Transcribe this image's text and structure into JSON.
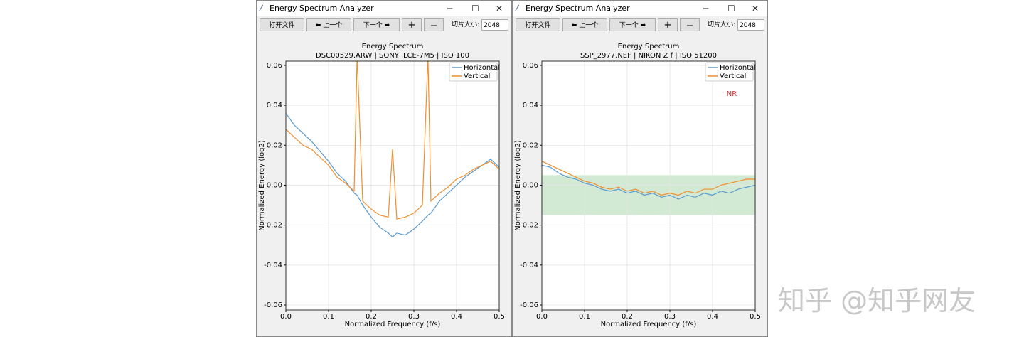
{
  "windows": [
    {
      "title": "Energy Spectrum Analyzer",
      "toolbar": {
        "open": "打开文件",
        "prev": "⬅ 上一个",
        "next": "下一个 ➡",
        "zoom_in": "+",
        "zoom_out": "—",
        "slice_label": "切片大小:",
        "slice_value": "2048"
      }
    },
    {
      "title": "Energy Spectrum Analyzer",
      "toolbar": {
        "open": "打开文件",
        "prev": "⬅ 上一个",
        "next": "下一个 ➡",
        "zoom_in": "+",
        "zoom_out": "—",
        "slice_label": "切片大小:",
        "slice_value": "2048"
      }
    }
  ],
  "chart_data": [
    {
      "type": "line",
      "title": "Energy Spectrum",
      "subtitle": "DSC00529.ARW | SONY ILCE-7M5 | ISO 100",
      "x_label": "Normalized Frequency (f/s)",
      "y_label": "Normalized Energy (log2)",
      "x": [
        0,
        0.02,
        0.04,
        0.06,
        0.08,
        0.1,
        0.12,
        0.14,
        0.16,
        0.167,
        0.18,
        0.2,
        0.22,
        0.24,
        0.25,
        0.26,
        0.28,
        0.3,
        0.32,
        0.333,
        0.34,
        0.36,
        0.38,
        0.4,
        0.42,
        0.44,
        0.46,
        0.48,
        0.5
      ],
      "series": [
        {
          "name": "Horizontal",
          "color": "#5b9bd0",
          "values": [
            0.036,
            0.03,
            0.026,
            0.022,
            0.017,
            0.012,
            0.006,
            0.002,
            -0.004,
            -0.005,
            -0.01,
            -0.016,
            -0.021,
            -0.024,
            -0.026,
            -0.024,
            -0.025,
            -0.022,
            -0.018,
            -0.015,
            -0.014,
            -0.008,
            -0.004,
            0.0,
            0.004,
            0.007,
            0.01,
            0.013,
            0.009
          ]
        },
        {
          "name": "Vertical",
          "color": "#f28e2b",
          "values": [
            0.028,
            0.024,
            0.02,
            0.018,
            0.014,
            0.01,
            0.004,
            0.001,
            -0.003,
            0.065,
            -0.008,
            -0.012,
            -0.015,
            -0.016,
            0.018,
            -0.017,
            -0.016,
            -0.014,
            -0.01,
            0.065,
            -0.008,
            -0.004,
            -0.001,
            0.003,
            0.005,
            0.008,
            0.01,
            0.012,
            0.008
          ]
        }
      ],
      "xlim": [
        0,
        0.5
      ],
      "ylim": [
        -0.0625,
        0.0621
      ],
      "xticks": [
        {
          "value": 0,
          "label": "0.0"
        },
        0.1,
        0.2,
        0.3,
        0.4,
        0.5
      ],
      "yticks": [
        0.06,
        0.04,
        0.02,
        {
          "value": 0,
          "label": "0.00"
        },
        -0.02,
        -0.04,
        -0.06
      ],
      "grid": true,
      "legend": "upper right"
    },
    {
      "type": "line",
      "title": "Energy Spectrum",
      "subtitle": "SSP_2977.NEF | NIKON Z f | ISO 51200",
      "x_label": "Normalized Frequency (f/s)",
      "y_label": "Normalized Energy (log2)",
      "annotation": "NR",
      "annotation_color": "#d32f2f",
      "band": {
        "y": [
          -0.015,
          0.005
        ],
        "color": "#a5d6a7"
      },
      "x": [
        0,
        0.02,
        0.04,
        0.06,
        0.08,
        0.1,
        0.12,
        0.14,
        0.16,
        0.18,
        0.2,
        0.22,
        0.24,
        0.26,
        0.28,
        0.3,
        0.32,
        0.34,
        0.36,
        0.38,
        0.4,
        0.42,
        0.44,
        0.46,
        0.48,
        0.5
      ],
      "series": [
        {
          "name": "Horizontal",
          "color": "#5b9bd0",
          "values": [
            0.01,
            0.009,
            0.006,
            0.004,
            0.003,
            0.001,
            0.0,
            -0.002,
            -0.003,
            -0.002,
            -0.004,
            -0.003,
            -0.005,
            -0.004,
            -0.006,
            -0.005,
            -0.007,
            -0.005,
            -0.006,
            -0.004,
            -0.005,
            -0.003,
            -0.004,
            -0.002,
            -0.001,
            0.0
          ]
        },
        {
          "name": "Vertical",
          "color": "#f28e2b",
          "values": [
            0.012,
            0.01,
            0.008,
            0.006,
            0.004,
            0.002,
            0.001,
            -0.001,
            -0.002,
            -0.001,
            -0.003,
            -0.002,
            -0.004,
            -0.003,
            -0.005,
            -0.004,
            -0.005,
            -0.003,
            -0.004,
            -0.002,
            -0.002,
            0.0,
            0.001,
            0.002,
            0.003,
            0.003
          ]
        }
      ],
      "xlim": [
        0,
        0.5
      ],
      "ylim": [
        -0.0625,
        0.0621
      ],
      "xticks": [
        {
          "value": 0,
          "label": "0.0"
        },
        0.1,
        0.2,
        0.3,
        0.4,
        0.5
      ],
      "yticks": [
        0.06,
        0.04,
        0.02,
        {
          "value": 0,
          "label": "0.00"
        },
        -0.02,
        -0.04,
        -0.06
      ],
      "grid": true,
      "legend": "upper right"
    }
  ],
  "watermark": "知乎 @知乎网友"
}
